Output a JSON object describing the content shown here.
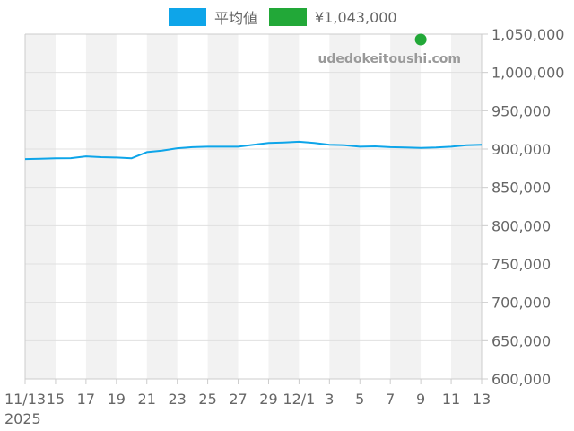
{
  "legend": {
    "series_average": "平均値",
    "series_price": "¥1,043,000"
  },
  "watermark": "udedokeitoushi.com",
  "colors": {
    "average": "#0ea5e9",
    "price": "#22a838",
    "band": "#f2f2f2",
    "grid": "#e0e0e0",
    "axis": "#cccccc",
    "text": "#666666"
  },
  "chart_data": {
    "type": "line",
    "title": "",
    "xlabel": "",
    "ylabel": "",
    "ylim": [
      600000,
      1050000
    ],
    "y_ticks": [
      "1,050,000",
      "1,000,000",
      "950,000",
      "900,000",
      "850,000",
      "800,000",
      "750,000",
      "700,000",
      "650,000",
      "600,000"
    ],
    "x_tick_labels": [
      "11/13",
      "15",
      "17",
      "19",
      "21",
      "23",
      "25",
      "27",
      "29",
      "12/1",
      "3",
      "5",
      "7",
      "9",
      "11",
      "13"
    ],
    "x_year_label": "2025",
    "grid": true,
    "legend_position": "top-center",
    "x_dates": [
      "11/13",
      "11/14",
      "11/15",
      "11/16",
      "11/17",
      "11/18",
      "11/19",
      "11/20",
      "11/21",
      "11/22",
      "11/23",
      "11/24",
      "11/25",
      "11/26",
      "11/27",
      "11/28",
      "11/29",
      "11/30",
      "12/1",
      "12/2",
      "12/3",
      "12/4",
      "12/5",
      "12/6",
      "12/7",
      "12/8",
      "12/9",
      "12/10",
      "12/11",
      "12/12",
      "12/13"
    ],
    "series": [
      {
        "name": "平均値",
        "values": [
          887000,
          887500,
          888000,
          888200,
          890500,
          889500,
          889000,
          888000,
          896000,
          898000,
          901000,
          902500,
          903000,
          903000,
          903000,
          905500,
          908000,
          908500,
          909500,
          908000,
          905500,
          905000,
          903000,
          903500,
          902500,
          902000,
          901500,
          902000,
          903000,
          905000,
          905500
        ]
      },
      {
        "name": "¥1,043,000",
        "points": [
          {
            "x": "12/9",
            "y": 1043000
          }
        ]
      }
    ]
  }
}
